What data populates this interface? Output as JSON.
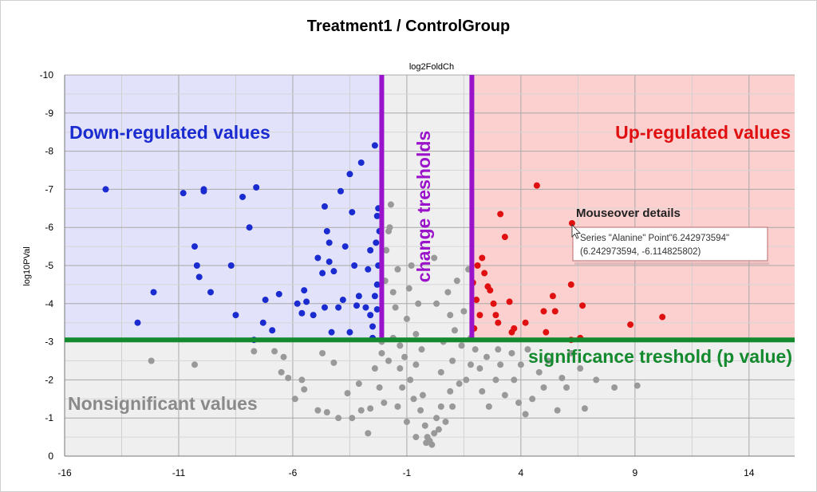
{
  "chart_data": {
    "type": "scatter",
    "title": "Treatment1 / ControlGroup",
    "xlabel": "log2FoldCh",
    "ylabel": "log10PVal",
    "xlim": [
      -16,
      16
    ],
    "ylim": [
      0,
      -10
    ],
    "x_ticks": [
      -16,
      -11,
      -6,
      -1,
      4,
      9,
      14
    ],
    "x_tick_labels": [
      "-16",
      "-11",
      "-6",
      "-1",
      "4",
      "9",
      "14"
    ],
    "y_ticks": [
      -10,
      -9,
      -8,
      -7,
      -6,
      -5,
      -4,
      -3,
      -2,
      -1,
      0
    ],
    "y_tick_labels": [
      "-10",
      "-9",
      "-8",
      "-7",
      "-6",
      "-5",
      "-4",
      "-3",
      "-2",
      "-1",
      "0"
    ],
    "thresholds": {
      "fold_change": [
        -2.1,
        1.85
      ],
      "significance": -3.05,
      "fold_color": "#9a12c9",
      "significance_color": "#138a2e"
    },
    "regions": {
      "down_color": "#e2e2fb",
      "up_color": "#fdd0d0",
      "neutral_color": "#efefef"
    },
    "annotations": {
      "down": "Down-regulated values",
      "up": "Up-regulated values",
      "nonsig": "Nonsignificant values",
      "change": "change tresholds",
      "significance": "significance treshold (p value)",
      "mouseover_title": "Mouseover details",
      "tooltip_line1": "Series \"Alanine\" Point\"6.242973594\"",
      "tooltip_line2": "(6.242973594, -6.114825802)"
    },
    "series": [
      {
        "name": "Down-regulated",
        "color": "#1a2bd0",
        "points": [
          [
            -14.2,
            -7.0
          ],
          [
            -12.1,
            -4.3
          ],
          [
            -12.8,
            -3.5
          ],
          [
            -10.8,
            -6.9
          ],
          [
            -9.9,
            -7.0
          ],
          [
            -9.9,
            -6.95
          ],
          [
            -10.3,
            -5.5
          ],
          [
            -10.2,
            -5.0
          ],
          [
            -10.1,
            -4.7
          ],
          [
            -9.6,
            -4.3
          ],
          [
            -8.2,
            -6.8
          ],
          [
            -7.9,
            -6.0
          ],
          [
            -7.6,
            -7.05
          ],
          [
            -8.7,
            -5.0
          ],
          [
            -8.5,
            -3.7
          ],
          [
            -7.2,
            -4.1
          ],
          [
            -7.3,
            -3.5
          ],
          [
            -6.9,
            -3.3
          ],
          [
            -6.6,
            -4.25
          ],
          [
            -7.7,
            -3.05
          ],
          [
            -5.5,
            -4.35
          ],
          [
            -5.4,
            -4.05
          ],
          [
            -5.8,
            -4.0
          ],
          [
            -5.6,
            -3.75
          ],
          [
            -4.9,
            -5.2
          ],
          [
            -4.6,
            -6.55
          ],
          [
            -4.5,
            -5.9
          ],
          [
            -4.4,
            -5.6
          ],
          [
            -4.4,
            -5.1
          ],
          [
            -4.0,
            -3.9
          ],
          [
            -4.6,
            -3.9
          ],
          [
            -4.3,
            -3.25
          ],
          [
            -4.2,
            -4.85
          ],
          [
            -3.9,
            -6.95
          ],
          [
            -3.5,
            -7.4
          ],
          [
            -3.4,
            -6.4
          ],
          [
            -3.3,
            -5.0
          ],
          [
            -3.1,
            -4.2
          ],
          [
            -3.0,
            -7.7
          ],
          [
            -3.2,
            -3.95
          ],
          [
            -3.5,
            -3.25
          ],
          [
            -2.7,
            -4.9
          ],
          [
            -2.8,
            -3.9
          ],
          [
            -2.6,
            -3.7
          ],
          [
            -2.5,
            -3.4
          ],
          [
            -2.4,
            -4.2
          ],
          [
            -2.35,
            -5.6
          ],
          [
            -2.3,
            -6.3
          ],
          [
            -2.4,
            -8.15
          ],
          [
            -2.25,
            -6.5
          ],
          [
            -2.2,
            -5.9
          ],
          [
            -2.25,
            -5.0
          ],
          [
            -2.3,
            -4.5
          ],
          [
            -2.6,
            -5.4
          ],
          [
            -2.5,
            -3.1
          ],
          [
            -3.8,
            -4.1
          ],
          [
            -5.1,
            -3.7
          ],
          [
            -4.7,
            -4.8
          ],
          [
            -3.7,
            -5.5
          ],
          [
            -2.3,
            -3.85
          ]
        ]
      },
      {
        "name": "Up-regulated",
        "color": "#e01010",
        "points": [
          [
            1.9,
            -4.55
          ],
          [
            2.05,
            -4.1
          ],
          [
            2.2,
            -3.7
          ],
          [
            2.3,
            -5.2
          ],
          [
            2.4,
            -4.8
          ],
          [
            2.55,
            -4.45
          ],
          [
            2.65,
            -4.35
          ],
          [
            2.8,
            -4.0
          ],
          [
            2.9,
            -3.7
          ],
          [
            3.0,
            -3.5
          ],
          [
            3.1,
            -6.35
          ],
          [
            3.3,
            -5.75
          ],
          [
            3.5,
            -4.05
          ],
          [
            3.6,
            -3.25
          ],
          [
            3.7,
            -3.35
          ],
          [
            4.2,
            -3.5
          ],
          [
            4.7,
            -7.1
          ],
          [
            5.0,
            -3.8
          ],
          [
            5.1,
            -3.25
          ],
          [
            5.4,
            -4.2
          ],
          [
            5.5,
            -3.8
          ],
          [
            6.2,
            -4.5
          ],
          [
            6.7,
            -3.95
          ],
          [
            6.2,
            -3.05
          ],
          [
            6.24,
            -6.11
          ],
          [
            6.6,
            -3.1
          ],
          [
            8.8,
            -3.45
          ],
          [
            10.2,
            -3.65
          ],
          [
            1.95,
            -3.35
          ],
          [
            2.1,
            -5.0
          ]
        ]
      },
      {
        "name": "Nonsignificant",
        "color": "#999999",
        "points": [
          [
            -12.2,
            -2.5
          ],
          [
            -10.3,
            -2.4
          ],
          [
            -7.7,
            -2.75
          ],
          [
            -6.8,
            -2.75
          ],
          [
            -6.5,
            -2.2
          ],
          [
            -6.4,
            -2.6
          ],
          [
            -6.2,
            -2.05
          ],
          [
            -5.9,
            -1.5
          ],
          [
            -5.6,
            -2.0
          ],
          [
            -5.5,
            -1.75
          ],
          [
            -4.9,
            -1.2
          ],
          [
            -4.7,
            -2.7
          ],
          [
            -4.5,
            -1.15
          ],
          [
            -4.0,
            -1.0
          ],
          [
            -4.2,
            -2.45
          ],
          [
            -3.6,
            -1.65
          ],
          [
            -3.4,
            -1.0
          ],
          [
            -3.1,
            -1.9
          ],
          [
            -2.7,
            -0.6
          ],
          [
            -2.6,
            -1.25
          ],
          [
            -2.4,
            -2.3
          ],
          [
            -2.1,
            -3.0
          ],
          [
            -2.1,
            -2.7
          ],
          [
            -2.2,
            -1.8
          ],
          [
            -1.95,
            -4.6
          ],
          [
            -1.9,
            -5.4
          ],
          [
            -1.8,
            -5.9
          ],
          [
            -1.75,
            -6.0
          ],
          [
            -1.7,
            -6.6
          ],
          [
            -1.6,
            -4.3
          ],
          [
            -1.6,
            -3.1
          ],
          [
            -1.5,
            -3.9
          ],
          [
            -1.4,
            -4.9
          ],
          [
            -1.3,
            -2.9
          ],
          [
            -1.3,
            -2.3
          ],
          [
            -1.2,
            -1.8
          ],
          [
            -1.1,
            -2.6
          ],
          [
            -1.0,
            -3.6
          ],
          [
            -0.9,
            -4.4
          ],
          [
            -0.8,
            -5.0
          ],
          [
            -0.85,
            -2.0
          ],
          [
            -0.7,
            -1.5
          ],
          [
            -0.6,
            -3.2
          ],
          [
            -0.6,
            -2.4
          ],
          [
            -0.5,
            -4.0
          ],
          [
            -0.4,
            -1.2
          ],
          [
            -0.35,
            -2.8
          ],
          [
            -0.2,
            -0.8
          ],
          [
            -0.3,
            -1.6
          ],
          [
            -0.1,
            -0.5
          ],
          [
            0.0,
            -0.4
          ],
          [
            -0.15,
            -0.35
          ],
          [
            0.2,
            -0.6
          ],
          [
            0.3,
            -1.0
          ],
          [
            0.4,
            -0.7
          ],
          [
            0.5,
            -1.3
          ],
          [
            0.2,
            -5.2
          ],
          [
            0.3,
            -4.0
          ],
          [
            0.5,
            -2.2
          ],
          [
            0.6,
            -3.0
          ],
          [
            0.8,
            -4.3
          ],
          [
            0.9,
            -1.7
          ],
          [
            1.0,
            -2.5
          ],
          [
            1.1,
            -3.3
          ],
          [
            1.2,
            -4.6
          ],
          [
            1.3,
            -1.9
          ],
          [
            1.4,
            -2.9
          ],
          [
            1.5,
            -3.8
          ],
          [
            1.6,
            -2.0
          ],
          [
            1.7,
            -4.9
          ],
          [
            1.8,
            -2.4
          ],
          [
            1.8,
            -3.1
          ],
          [
            -1.0,
            -0.9
          ],
          [
            -0.6,
            -0.5
          ],
          [
            0.1,
            -0.3
          ],
          [
            0.7,
            -0.9
          ],
          [
            -1.4,
            -1.3
          ],
          [
            1.0,
            -1.3
          ],
          [
            -1.8,
            -2.5
          ],
          [
            0.9,
            -3.7
          ],
          [
            2.0,
            -2.8
          ],
          [
            2.2,
            -2.3
          ],
          [
            2.3,
            -1.7
          ],
          [
            2.5,
            -2.6
          ],
          [
            2.6,
            -1.3
          ],
          [
            2.9,
            -2.0
          ],
          [
            3.1,
            -2.4
          ],
          [
            3.3,
            -1.6
          ],
          [
            3.6,
            -2.7
          ],
          [
            3.7,
            -2.0
          ],
          [
            3.9,
            -1.4
          ],
          [
            4.0,
            -2.4
          ],
          [
            4.2,
            -1.1
          ],
          [
            4.3,
            -2.8
          ],
          [
            4.8,
            -2.2
          ],
          [
            5.0,
            -1.8
          ],
          [
            5.2,
            -2.5
          ],
          [
            5.6,
            -1.2
          ],
          [
            6.0,
            -1.8
          ],
          [
            6.2,
            -2.7
          ],
          [
            6.6,
            -2.3
          ],
          [
            6.8,
            -1.25
          ],
          [
            7.3,
            -2.0
          ],
          [
            8.1,
            -1.8
          ],
          [
            9.1,
            -1.85
          ],
          [
            5.8,
            -2.05
          ],
          [
            4.5,
            -1.5
          ],
          [
            3.0,
            -2.8
          ],
          [
            -2.0,
            -1.4
          ],
          [
            -3.0,
            -1.2
          ]
        ]
      }
    ]
  }
}
